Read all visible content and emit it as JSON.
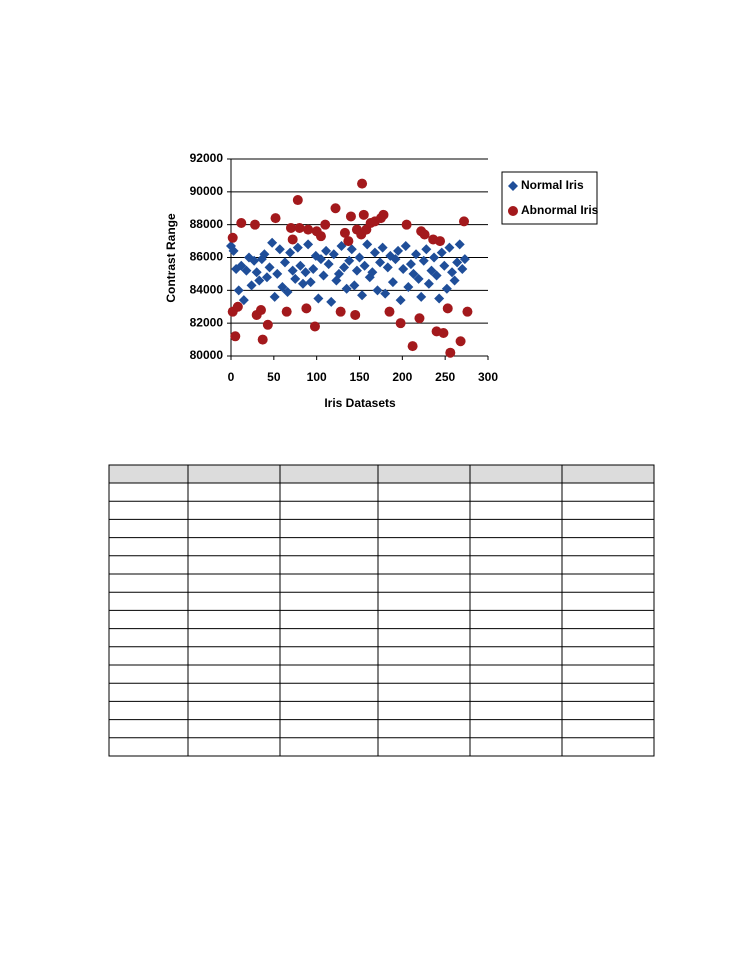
{
  "chart_data": {
    "type": "scatter",
    "xlabel": "Iris Datasets",
    "ylabel": "Contrast Range",
    "xlim": [
      0,
      300
    ],
    "xticks": [
      0,
      50,
      100,
      150,
      200,
      250,
      300
    ],
    "ylim": [
      80000,
      92000
    ],
    "yticks": [
      80000,
      82000,
      84000,
      86000,
      88000,
      90000,
      92000
    ],
    "grid": true,
    "legend": "right",
    "series": [
      {
        "name": "Normal Iris",
        "color": "#1f4e99",
        "marker": "diamond",
        "x": [
          0,
          3,
          6,
          9,
          12,
          15,
          18,
          21,
          24,
          27,
          30,
          33,
          36,
          39,
          42,
          45,
          48,
          51,
          54,
          57,
          60,
          63,
          66,
          69,
          72,
          75,
          78,
          81,
          84,
          87,
          90,
          93,
          96,
          99,
          102,
          105,
          108,
          111,
          114,
          117,
          120,
          123,
          126,
          129,
          132,
          135,
          138,
          141,
          144,
          147,
          150,
          153,
          156,
          159,
          162,
          165,
          168,
          171,
          174,
          177,
          180,
          183,
          186,
          189,
          192,
          195,
          198,
          201,
          204,
          207,
          210,
          213,
          216,
          219,
          222,
          225,
          228,
          231,
          234,
          237,
          240,
          243,
          246,
          249,
          252,
          255,
          258,
          261,
          264,
          267,
          270,
          273
        ],
        "values": [
          86700,
          86400,
          85300,
          84000,
          85500,
          83400,
          85200,
          86000,
          84300,
          85800,
          85100,
          84600,
          85900,
          86200,
          84800,
          85400,
          86900,
          83600,
          85000,
          86500,
          84200,
          85700,
          83900,
          86300,
          85200,
          84700,
          86600,
          85500,
          84400,
          85100,
          86800,
          84500,
          85300,
          86100,
          83500,
          85900,
          84900,
          86400,
          85600,
          83300,
          86200,
          84600,
          85000,
          86700,
          85400,
          84100,
          85800,
          86500,
          84300,
          85200,
          86000,
          83700,
          85500,
          86800,
          84800,
          85100,
          86300,
          84000,
          85700,
          86600,
          83800,
          85400,
          86100,
          84500,
          85900,
          86400,
          83400,
          85300,
          86700,
          84200,
          85600,
          85000,
          86200,
          84700,
          83600,
          85800,
          86500,
          84400,
          85200,
          86000,
          84900,
          83500,
          86300,
          85500,
          84100,
          86600,
          85100,
          84600,
          85700,
          86800,
          85300,
          85900
        ]
      },
      {
        "name": "Abnormal Iris",
        "color": "#a3191c",
        "marker": "circle",
        "x": [
          2,
          2,
          5,
          8,
          12,
          28,
          30,
          35,
          37,
          43,
          52,
          65,
          70,
          72,
          78,
          80,
          88,
          90,
          98,
          100,
          105,
          110,
          122,
          128,
          133,
          137,
          140,
          145,
          147,
          152,
          153,
          155,
          158,
          163,
          168,
          175,
          178,
          185,
          198,
          205,
          212,
          220,
          222,
          226,
          236,
          240,
          244,
          248,
          253,
          256,
          268,
          272,
          276
        ],
        "values": [
          87200,
          82700,
          81200,
          83000,
          88100,
          88000,
          82500,
          82800,
          81000,
          81900,
          88400,
          82700,
          87800,
          87100,
          89500,
          87800,
          82900,
          87700,
          81800,
          87600,
          87300,
          88000,
          89000,
          82700,
          87500,
          87000,
          88500,
          82500,
          87700,
          87400,
          90500,
          88600,
          87700,
          88100,
          88200,
          88400,
          88600,
          82700,
          82000,
          88000,
          80600,
          82300,
          87600,
          87400,
          87100,
          81500,
          87000,
          81400,
          82900,
          80200,
          80900,
          88200,
          82700
        ]
      }
    ]
  }
}
